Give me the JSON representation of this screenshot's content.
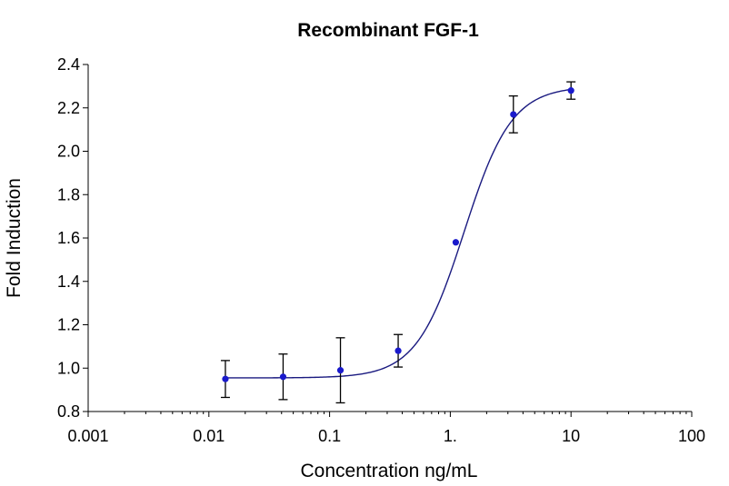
{
  "chart_data": {
    "type": "scatter",
    "title": "Recombinant FGF-1",
    "xlabel": "Concentration ng/mL",
    "ylabel": "Fold Induction",
    "x_scale": "log",
    "xlim": [
      0.001,
      100
    ],
    "ylim": [
      0.8,
      2.4
    ],
    "x_ticks": [
      0.001,
      0.01,
      0.1,
      1,
      10,
      100
    ],
    "x_tick_labels": [
      "0.001",
      "0.01",
      "0.1",
      "1.",
      "10",
      "100"
    ],
    "y_ticks": [
      0.8,
      1.0,
      1.2,
      1.4,
      1.6,
      1.8,
      2.0,
      2.2,
      2.4
    ],
    "y_tick_labels": [
      "0.8",
      "1.0",
      "1.2",
      "1.4",
      "1.6",
      "1.8",
      "2.0",
      "2.2",
      "2.4"
    ],
    "grid": false,
    "legend": "none",
    "series": [
      {
        "x": [
          0.0137,
          0.0412,
          0.123,
          0.37,
          1.11,
          3.33,
          10
        ],
        "y": [
          0.95,
          0.96,
          0.99,
          1.08,
          1.58,
          2.17,
          2.28
        ],
        "error": [
          0.085,
          0.105,
          0.15,
          0.075,
          0.0,
          0.085,
          0.04
        ]
      }
    ],
    "fit": {
      "model": "4PL",
      "bottom": 0.955,
      "top": 2.3,
      "ec50": 1.3,
      "hill": 2.2
    },
    "colors": {
      "points": "#1a1acc",
      "curve": "#1a1a80",
      "axes": "#000000",
      "error_bars": "#000000"
    }
  }
}
